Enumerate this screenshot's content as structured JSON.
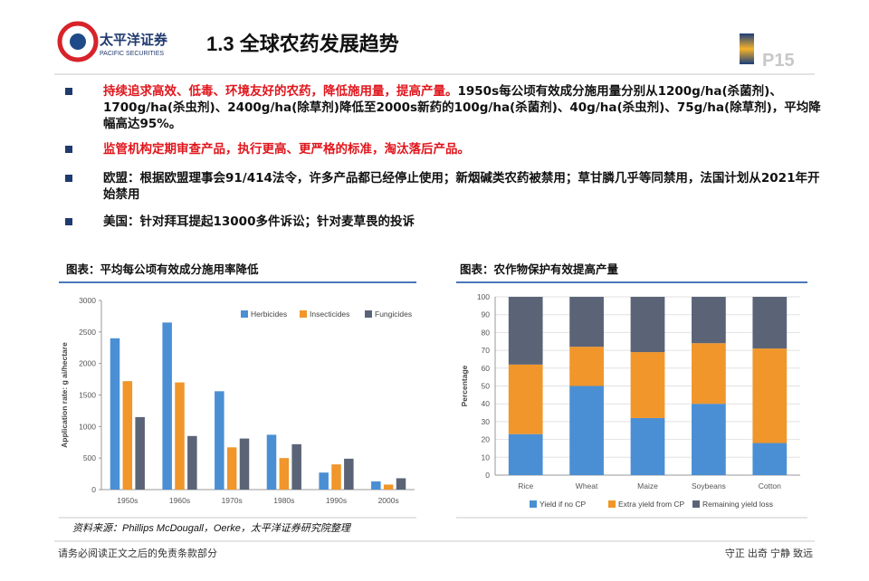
{
  "header": {
    "company": "太平洋证券",
    "company_en": "PACIFIC SECURITIES",
    "title": "1.3 全球农药发展趋势",
    "page": "P15"
  },
  "bullets": [
    {
      "highlight": "持续追求高效、低毒、环境友好的农药，降低施用量，提高产量。",
      "text": "1950s每公顷有效成分施用量分别从1200g/ha(杀菌剂)、1700g/ha(杀虫剂)、2400g/ha(除草剂)降低至2000s新药的100g/ha(杀菌剂)、40g/ha(杀虫剂)、75g/ha(除草剂)，平均降幅高达95%。"
    },
    {
      "highlight": "监管机构定期审查产品，执行更高、更严格的标准，淘汰落后产品。",
      "text": ""
    },
    {
      "highlight": "",
      "text": "欧盟：根据欧盟理事会91/414法令，许多产品都已经停止使用；新烟碱类农药被禁用；草甘膦几乎等同禁用，法国计划从2021年开始禁用"
    },
    {
      "highlight": "",
      "text": "美国：针对拜耳提起13000多件诉讼；针对麦草畏的投诉"
    }
  ],
  "chart_data": [
    {
      "type": "bar",
      "title": "图表：平均每公顷有效成分施用率降低",
      "y_label": "Application rate: g ai/hectare",
      "categories": [
        "1950s",
        "1960s",
        "1970s",
        "1980s",
        "1990s",
        "2000s"
      ],
      "series": [
        {
          "name": "Herbicides",
          "color": "#4a8fd4",
          "values": [
            2400,
            2650,
            1560,
            870,
            270,
            130
          ]
        },
        {
          "name": "Insecticides",
          "color": "#f0962a",
          "values": [
            1720,
            1700,
            670,
            500,
            400,
            80
          ]
        },
        {
          "name": "Fungicides",
          "color": "#5b6477",
          "values": [
            1150,
            850,
            810,
            720,
            490,
            180
          ]
        }
      ],
      "ylim": [
        0,
        3000
      ],
      "yticks": [
        0,
        500,
        1000,
        1500,
        2000,
        2500,
        3000
      ],
      "grid": false,
      "legend": "top-right"
    },
    {
      "type": "stacked_bar",
      "title": "图表：农作物保护有效提高产量",
      "y_label": "Percentage",
      "categories": [
        "Rice",
        "Wheat",
        "Maize",
        "Soybeans",
        "Cotton"
      ],
      "series": [
        {
          "name": "Yield if no CP",
          "color": "#4a8fd4",
          "values": [
            23,
            50,
            32,
            40,
            18
          ]
        },
        {
          "name": "Extra yield from CP",
          "color": "#f0962a",
          "values": [
            39,
            22,
            37,
            34,
            53
          ]
        },
        {
          "name": "Remaining yield loss",
          "color": "#5b6477",
          "values": [
            38,
            28,
            31,
            26,
            29
          ]
        }
      ],
      "ylim": [
        0,
        100
      ],
      "yticks": [
        0,
        10,
        20,
        30,
        40,
        50,
        60,
        70,
        80,
        90,
        100
      ],
      "grid": true,
      "legend": "bottom"
    }
  ],
  "source": "资料来源：Phillips McDougall，Oerke，太平洋证券研究院整理",
  "footer": {
    "left": "请务必阅读正文之后的免责条款部分",
    "right": "守正 出奇 宁静 致远"
  }
}
